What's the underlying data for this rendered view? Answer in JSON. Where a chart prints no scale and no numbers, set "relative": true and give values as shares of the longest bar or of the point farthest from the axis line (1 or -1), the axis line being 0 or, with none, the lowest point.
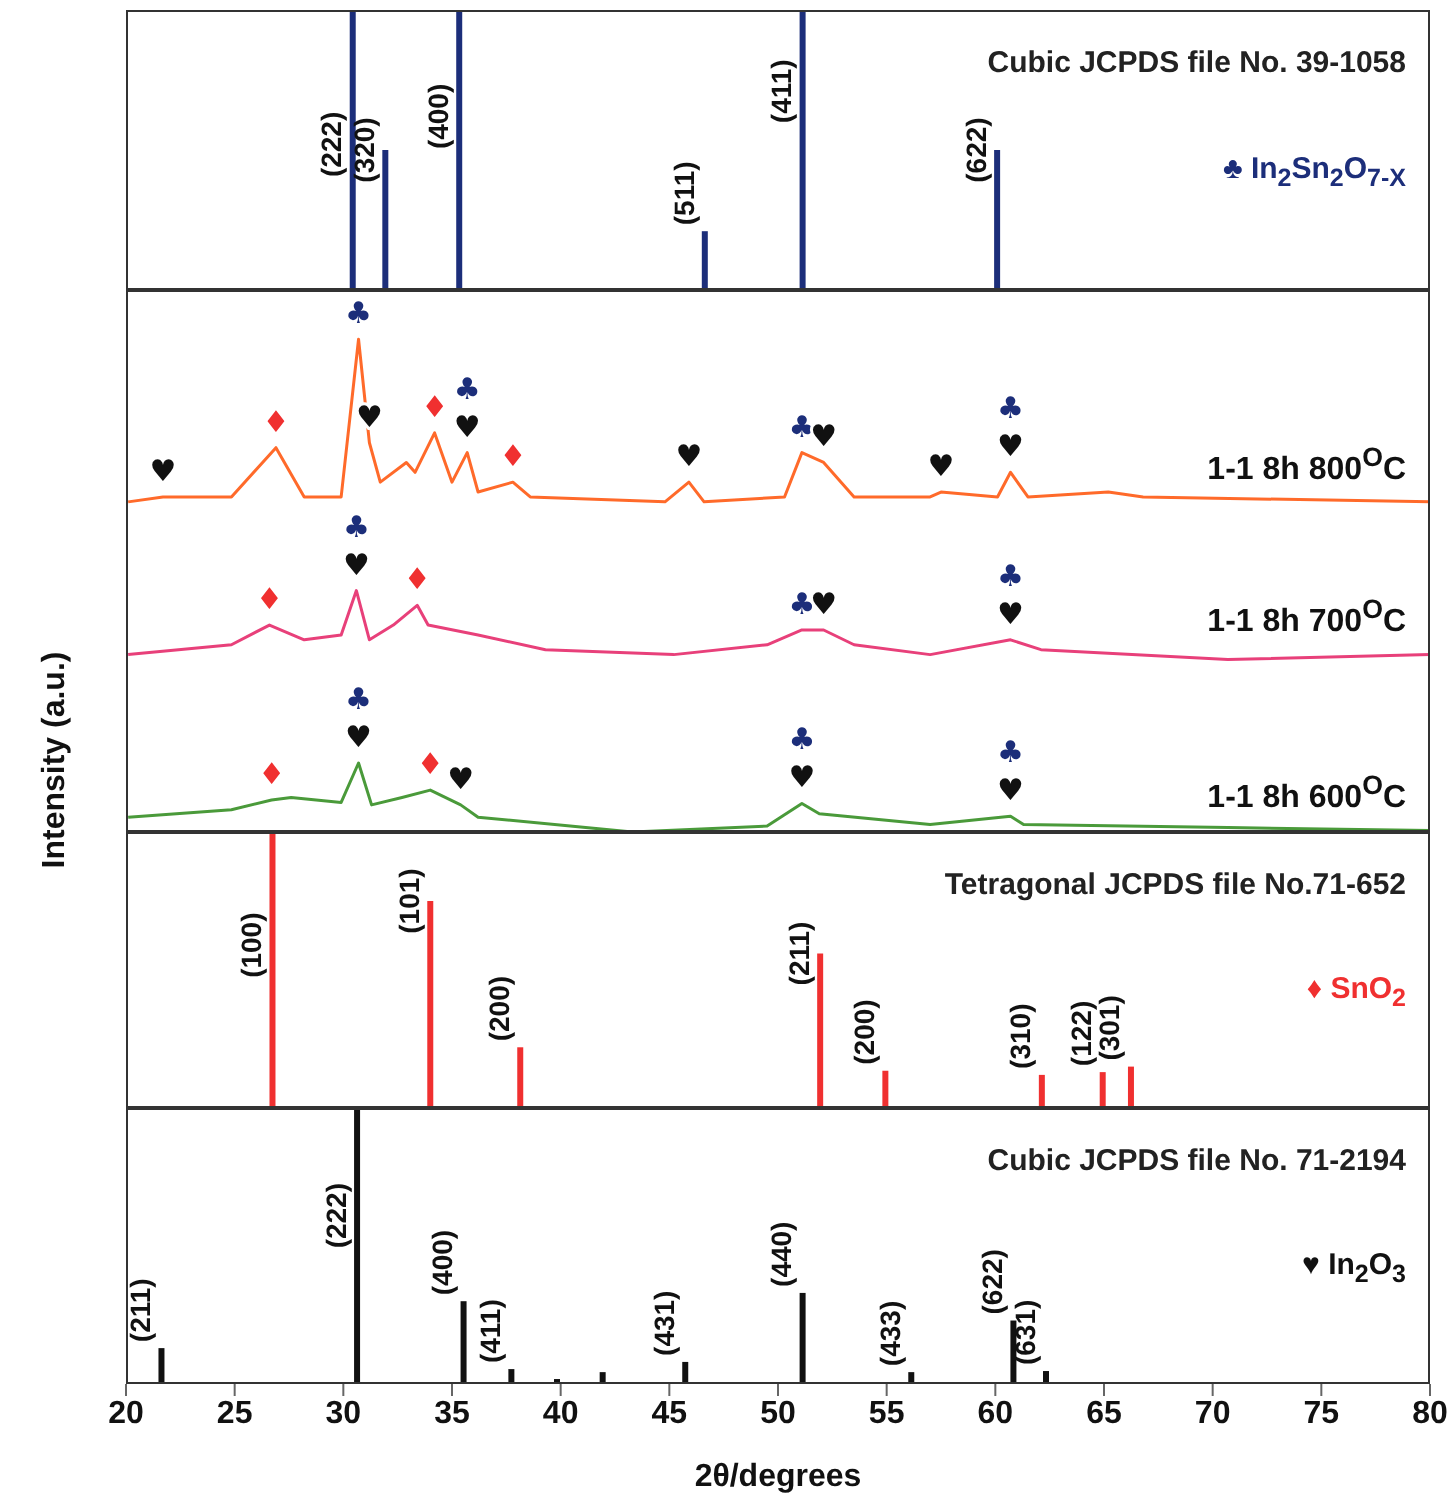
{
  "chart_data": [
    {
      "type": "bar",
      "title": "Cubic JCPDS file No. 39-1058",
      "relative": true,
      "xlim": [
        20,
        80
      ],
      "tick_labels": false,
      "legend": "right",
      "series": [
        {
          "name": "♣ In$_{2}$Sn$_{2}$O$_{7-X}$",
          "color": "#1c2e7a",
          "x": [
            30.4,
            31.9,
            35.3,
            46.6,
            51.1,
            60.05
          ],
          "values": [
            1,
            0.5,
            1,
            0.21,
            1,
            0.5
          ]
        }
      ],
      "annotations": [
        {
          "text": "(222)",
          "x": 30.4,
          "y": 0.52
        },
        {
          "text": "(320)",
          "x": 31.9,
          "y": 0.5
        },
        {
          "text": "(400)",
          "x": 35.3,
          "y": 0.62
        },
        {
          "text": "(511)",
          "x": 46.6,
          "y": 0.21
        },
        {
          "text": "(411)",
          "x": 51.1,
          "y": 0.71
        },
        {
          "text": "(622)",
          "x": 60.05,
          "y": 0.5
        }
      ]
    },
    {
      "type": "line",
      "relative": true,
      "xlim": [
        20,
        80
      ],
      "tick_labels": false,
      "ylabel": "Intensity (a.u.)",
      "series": [
        {
          "name": "1-1 8h 800$^{O}$C",
          "color": "#ff6a2a",
          "x": [
            20.1,
            21.7,
            24.85,
            26.9,
            28.2,
            29.9,
            30.7,
            31.2,
            31.7,
            32.9,
            33.3,
            34.2,
            35.0,
            35.7,
            36.2,
            37.8,
            38.6,
            44.8,
            45.9,
            46.6,
            50.3,
            51.1,
            52.1,
            53.5,
            57.0,
            57.5,
            60.1,
            60.7,
            61.5,
            65.2,
            66.8,
            80
          ],
          "values": [
            0.67,
            0.68,
            0.68,
            0.78,
            0.68,
            0.68,
            1,
            0.79,
            0.71,
            0.75,
            0.73,
            0.81,
            0.71,
            0.77,
            0.69,
            0.71,
            0.68,
            0.67,
            0.71,
            0.67,
            0.68,
            0.77,
            0.75,
            0.68,
            0.68,
            0.69,
            0.68,
            0.73,
            0.68,
            0.69,
            0.68,
            0.67
          ]
        },
        {
          "name": "1-1 8h 700$^{O}$C",
          "color": "#e8407a",
          "x": [
            20.1,
            24.85,
            26.6,
            28.2,
            29.9,
            30.6,
            31.2,
            32.3,
            33.4,
            33.9,
            36.2,
            39.3,
            45.2,
            49.5,
            51.1,
            52.1,
            53.5,
            57.0,
            60.7,
            62.1,
            70.7,
            80
          ],
          "values": [
            0.36,
            0.38,
            0.42,
            0.39,
            0.4,
            0.49,
            0.39,
            0.42,
            0.46,
            0.42,
            0.4,
            0.37,
            0.36,
            0.38,
            0.41,
            0.41,
            0.38,
            0.36,
            0.39,
            0.37,
            0.35,
            0.36
          ]
        },
        {
          "name": "1-1 8h 600$^{O}$C",
          "color": "#4a9a3a",
          "x": [
            20.1,
            24.85,
            26.7,
            27.6,
            29.9,
            30.7,
            31.3,
            32.7,
            34.0,
            35.4,
            36.2,
            43.3,
            49.5,
            51.1,
            51.9,
            57.0,
            60.7,
            61.3,
            70.7,
            80
          ],
          "values": [
            0.03,
            0.045,
            0.065,
            0.07,
            0.06,
            0.14,
            0.055,
            0.07,
            0.085,
            0.055,
            0.03,
            0,
            0.012,
            0.058,
            0.037,
            0.015,
            0.032,
            0.015,
            0.009,
            0.003
          ]
        }
      ],
      "annotations": [
        {
          "text": "♥",
          "x": 21.7,
          "y": 0.68
        },
        {
          "text": "♦",
          "x": 26.9,
          "y": 0.78
        },
        {
          "text": "♣",
          "x": 30.7,
          "y": 1
        },
        {
          "text": "♥",
          "x": 31.2,
          "y": 0.79
        },
        {
          "text": "♦",
          "x": 34.2,
          "y": 0.81
        },
        {
          "text": "♥",
          "x": 35.7,
          "y": 0.77
        },
        {
          "text": "♣",
          "x": 35.7,
          "y": 0.77
        },
        {
          "text": "♦",
          "x": 37.8,
          "y": 0.71
        },
        {
          "text": "♥",
          "x": 45.9,
          "y": 0.71
        },
        {
          "text": "♣",
          "x": 51.1,
          "y": 0.77
        },
        {
          "text": "♥",
          "x": 52.1,
          "y": 0.75
        },
        {
          "text": "♥",
          "x": 57.5,
          "y": 0.69
        },
        {
          "text": "♥",
          "x": 60.7,
          "y": 0.73
        },
        {
          "text": "♣",
          "x": 60.7,
          "y": 0.73
        },
        {
          "text": "♦",
          "x": 26.6,
          "y": 0.42
        },
        {
          "text": "♥",
          "x": 30.6,
          "y": 0.49
        },
        {
          "text": "♣",
          "x": 30.6,
          "y": 0.49
        },
        {
          "text": "♦",
          "x": 33.4,
          "y": 0.46
        },
        {
          "text": "♣",
          "x": 51.1,
          "y": 0.41
        },
        {
          "text": "♥",
          "x": 52.1,
          "y": 0.41
        },
        {
          "text": "♥",
          "x": 60.7,
          "y": 0.39
        },
        {
          "text": "♣",
          "x": 60.7,
          "y": 0.39
        },
        {
          "text": "♦",
          "x": 26.7,
          "y": 0.065
        },
        {
          "text": "♥",
          "x": 30.7,
          "y": 0.14
        },
        {
          "text": "♣",
          "x": 30.7,
          "y": 0.14
        },
        {
          "text": "♦",
          "x": 34.0,
          "y": 0.085
        },
        {
          "text": "♥",
          "x": 35.4,
          "y": 0.055
        },
        {
          "text": "♥",
          "x": 51.1,
          "y": 0.058
        },
        {
          "text": "♣",
          "x": 51.1,
          "y": 0.058
        },
        {
          "text": "♥",
          "x": 60.7,
          "y": 0.032
        },
        {
          "text": "♣",
          "x": 60.7,
          "y": 0.032
        }
      ]
    },
    {
      "type": "bar",
      "title": "Tetragonal JCPDS file No.71-652",
      "relative": true,
      "xlim": [
        20,
        80
      ],
      "tick_labels": false,
      "legend": "right",
      "series": [
        {
          "name": "♦ SnO$_{2}$",
          "color": "#f03030",
          "x": [
            26.7,
            33.96,
            38.1,
            51.9,
            54.9,
            62.1,
            64.9,
            66.2
          ],
          "values": [
            1,
            0.75,
            0.22,
            0.56,
            0.135,
            0.12,
            0.13,
            0.15
          ]
        }
      ],
      "annotations": [
        {
          "text": "(100)",
          "x": 26.7,
          "y": 0.59
        },
        {
          "text": "(101)",
          "x": 33.96,
          "y": 0.75
        },
        {
          "text": "(200)",
          "x": 38.1,
          "y": 0.22
        },
        {
          "text": "(211)",
          "x": 51.9,
          "y": 0.56
        },
        {
          "text": "(200)",
          "x": 54.9,
          "y": 0.135
        },
        {
          "text": "(310)",
          "x": 62.1,
          "y": 0.12
        },
        {
          "text": "(122)",
          "x": 64.9,
          "y": 0.13
        },
        {
          "text": "(301)",
          "x": 66.2,
          "y": 0.15
        }
      ]
    },
    {
      "type": "bar",
      "title": "Cubic JCPDS file No. 71-2194",
      "relative": true,
      "xlim": [
        20,
        80
      ],
      "xticks": [
        20,
        25,
        30,
        35,
        40,
        45,
        50,
        55,
        60,
        65,
        70,
        75,
        80
      ],
      "tick_labels": "x",
      "xlabel": "2θ/degrees",
      "legend": "right",
      "series": [
        {
          "name": "♥ In$_{2}$O$_{3}$",
          "color": "#111111",
          "x": [
            21.6,
            30.6,
            35.5,
            37.7,
            39.8,
            41.9,
            45.7,
            51.1,
            56.1,
            60.8,
            62.3
          ],
          "values": [
            0.13,
            1,
            0.3,
            0.054,
            0.018,
            0.043,
            0.08,
            0.33,
            0.043,
            0.23,
            0.047
          ]
        }
      ],
      "annotations": [
        {
          "text": "(211)",
          "x": 21.6,
          "y": 0.13
        },
        {
          "text": "(222)",
          "x": 30.6,
          "y": 0.61
        },
        {
          "text": "(400)",
          "x": 35.5,
          "y": 0.3
        },
        {
          "text": "(411)",
          "x": 37.7,
          "y": 0.054
        },
        {
          "text": "(431)",
          "x": 45.7,
          "y": 0.08
        },
        {
          "text": "(440)",
          "x": 51.1,
          "y": 0.33
        },
        {
          "text": "(433)",
          "x": 56.1,
          "y": 0.043
        },
        {
          "text": "(622)",
          "x": 60.8,
          "y": 0.23
        },
        {
          "text": "(631)",
          "x": 62.3,
          "y": 0.047
        }
      ]
    }
  ]
}
